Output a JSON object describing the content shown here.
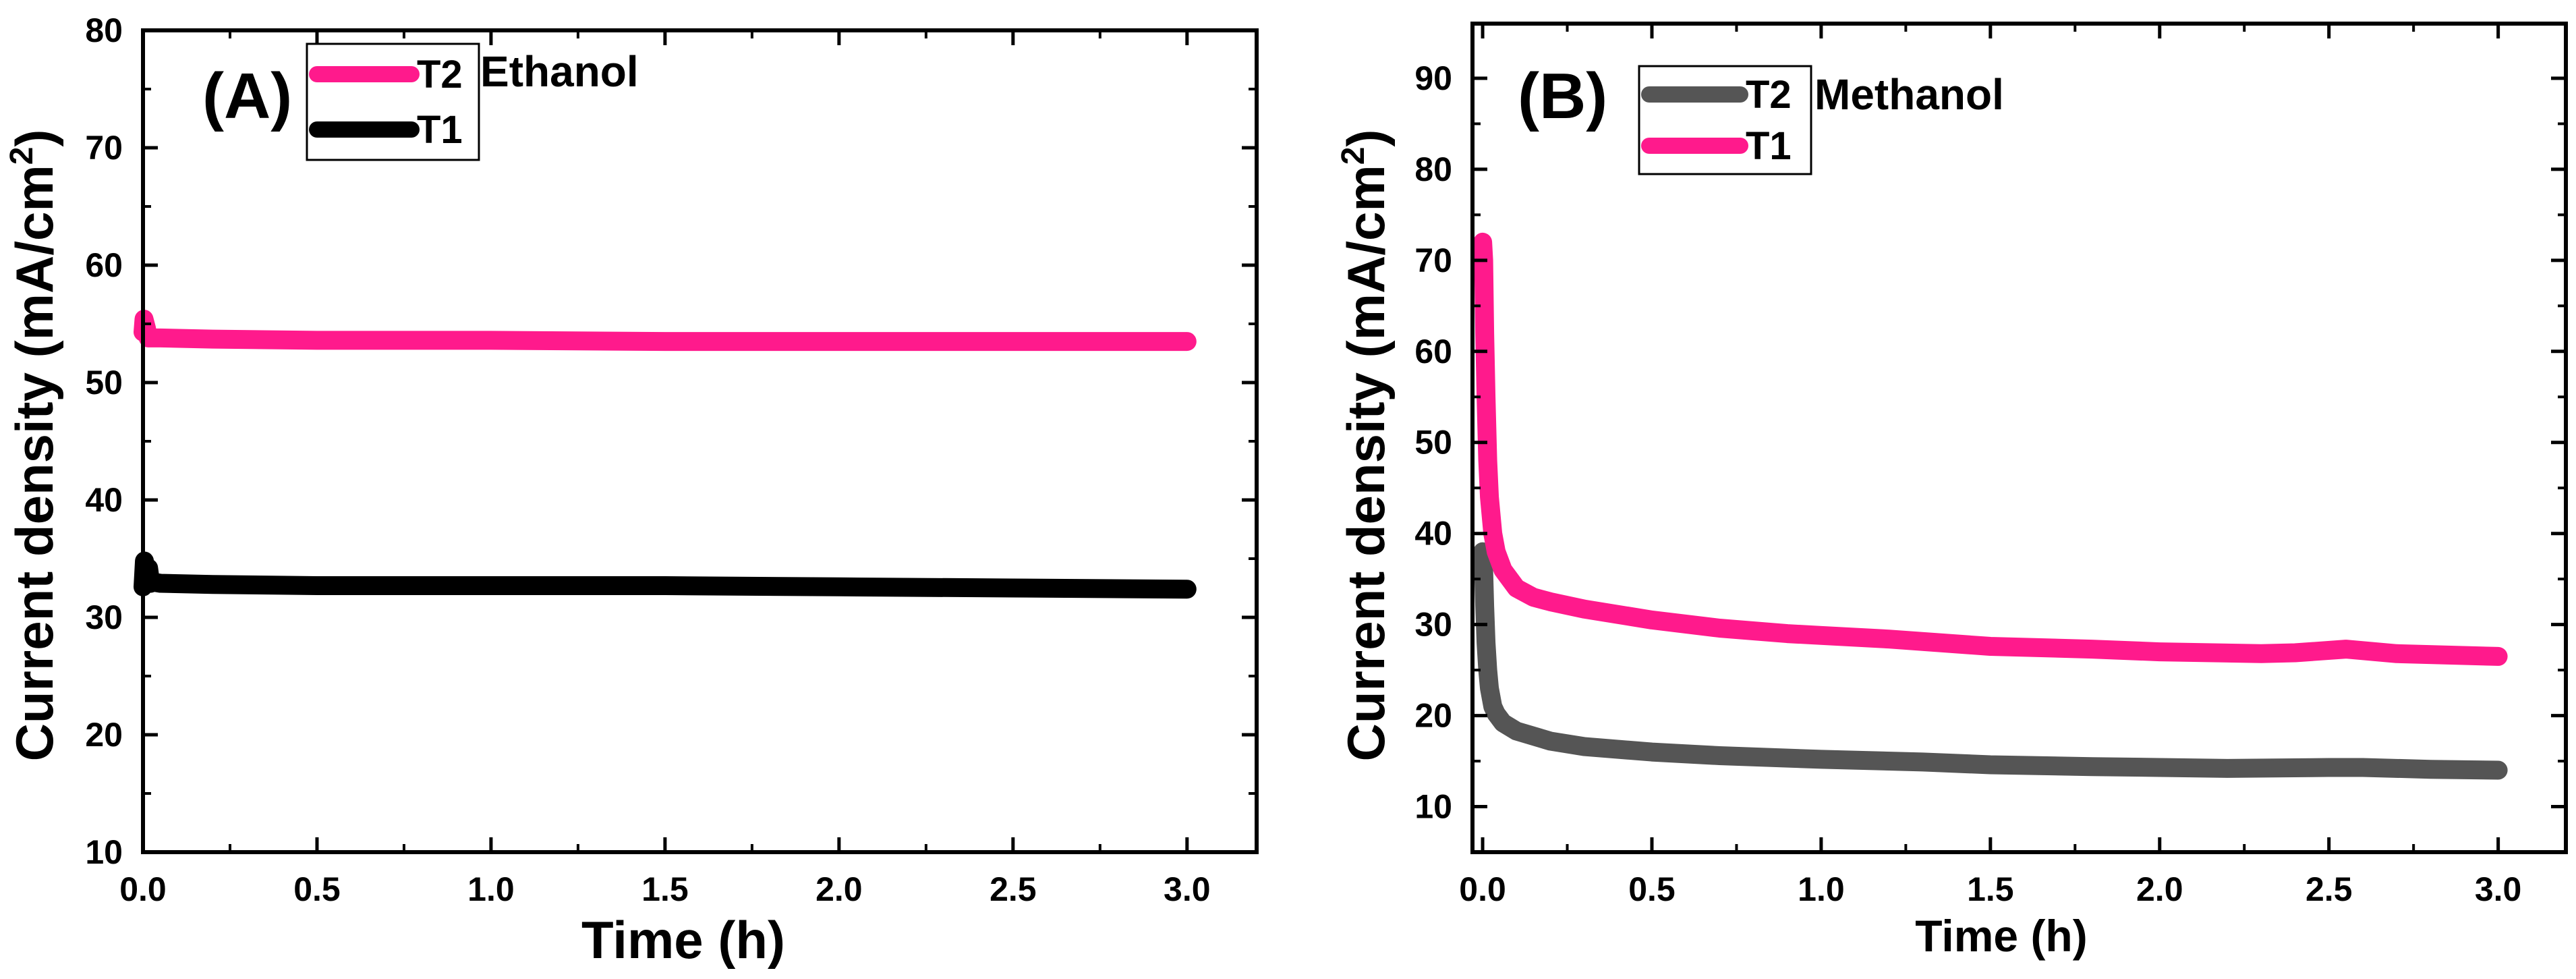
{
  "chart_data": [
    {
      "type": "line",
      "panel_label": "(A)",
      "solvent": "Ethanol",
      "xlabel": "Time (h)",
      "ylabel_main": "Current density (mA/cm",
      "ylabel_sup": "2",
      "ylabel_close": ")",
      "xlim": [
        0,
        3.2
      ],
      "ylim": [
        10,
        80
      ],
      "xticks": [
        0.0,
        0.5,
        1.0,
        1.5,
        2.0,
        2.5,
        3.0
      ],
      "xtick_labels": [
        "0.0",
        "0.5",
        "1.0",
        "1.5",
        "2.0",
        "2.5",
        "3.0"
      ],
      "yticks": [
        10,
        20,
        30,
        40,
        50,
        60,
        70,
        80
      ],
      "ytick_labels": [
        "10",
        "20",
        "30",
        "40",
        "50",
        "60",
        "70",
        "80"
      ],
      "legend": [
        "T2",
        "T1"
      ],
      "series": [
        {
          "name": "T2",
          "color": "#ff1a8c",
          "x": [
            0,
            0.003,
            0.01,
            0.015,
            0.02,
            0.05,
            0.2,
            0.5,
            1.0,
            1.5,
            2.0,
            2.5,
            3.0
          ],
          "y": [
            54.3,
            55.4,
            54.6,
            53.8,
            53.8,
            53.8,
            53.7,
            53.6,
            53.6,
            53.5,
            53.5,
            53.5,
            53.5
          ]
        },
        {
          "name": "T1",
          "color": "#000000",
          "x": [
            0,
            0.004,
            0.01,
            0.016,
            0.022,
            0.03,
            0.05,
            0.2,
            0.5,
            1.0,
            1.5,
            2.0,
            2.5,
            3.0
          ],
          "y": [
            32.6,
            34.8,
            33.2,
            34.2,
            32.9,
            33.0,
            32.9,
            32.8,
            32.7,
            32.7,
            32.7,
            32.6,
            32.5,
            32.4
          ]
        }
      ]
    },
    {
      "type": "line",
      "panel_label": "(B)",
      "solvent": "Methanol",
      "xlabel": "Time (h)",
      "ylabel_main": "Current density (mA/cm",
      "ylabel_sup": "2",
      "ylabel_close": ")",
      "xlim": [
        -0.03,
        3.2
      ],
      "ylim": [
        5,
        96
      ],
      "xticks": [
        0.0,
        0.5,
        1.0,
        1.5,
        2.0,
        2.5,
        3.0
      ],
      "xtick_labels": [
        "0.0",
        "0.5",
        "1.0",
        "1.5",
        "2.0",
        "2.5",
        "3.0"
      ],
      "yticks": [
        10,
        20,
        30,
        40,
        50,
        60,
        70,
        80,
        90
      ],
      "ytick_labels": [
        "10",
        "20",
        "30",
        "40",
        "50",
        "60",
        "70",
        "80",
        "90"
      ],
      "legend": [
        "T2",
        "T1"
      ],
      "series": [
        {
          "name": "T2",
          "color": "#555555",
          "x": [
            0,
            0.003,
            0.006,
            0.01,
            0.015,
            0.02,
            0.03,
            0.04,
            0.06,
            0.1,
            0.2,
            0.3,
            0.5,
            0.7,
            1.0,
            1.3,
            1.5,
            1.8,
            2.0,
            2.2,
            2.5,
            2.6,
            2.8,
            3.0
          ],
          "y": [
            38,
            36,
            32,
            28,
            25,
            23,
            21,
            20.2,
            19.2,
            18.3,
            17.2,
            16.6,
            16.0,
            15.6,
            15.2,
            14.9,
            14.6,
            14.4,
            14.3,
            14.2,
            14.3,
            14.3,
            14.1,
            14.0
          ]
        },
        {
          "name": "T1",
          "color": "#ff1a8c",
          "x": [
            0,
            0.003,
            0.006,
            0.01,
            0.015,
            0.02,
            0.03,
            0.04,
            0.06,
            0.1,
            0.15,
            0.2,
            0.3,
            0.5,
            0.7,
            0.9,
            1.0,
            1.2,
            1.5,
            1.8,
            2.0,
            2.3,
            2.4,
            2.55,
            2.7,
            3.0
          ],
          "y": [
            72,
            70,
            62,
            55,
            48,
            44,
            40,
            38,
            36,
            34,
            33,
            32.5,
            31.7,
            30.5,
            29.6,
            29,
            28.8,
            28.4,
            27.6,
            27.3,
            27.0,
            26.8,
            26.9,
            27.3,
            26.8,
            26.5
          ]
        }
      ]
    }
  ]
}
